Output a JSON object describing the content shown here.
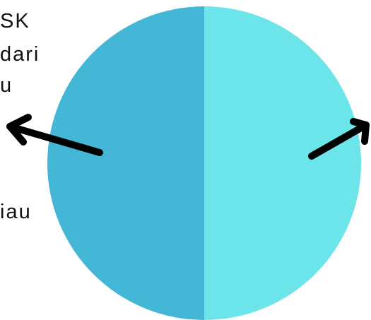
{
  "chart_data": {
    "type": "pie",
    "categories": [
      "",
      ""
    ],
    "values": [
      50,
      50
    ],
    "colors": [
      "#43B7D5",
      "#6BE5E9"
    ],
    "start": "top",
    "direction": "counter-clockwise",
    "title": "",
    "annotations": {
      "left_text_fragments": [
        "SK",
        "dari",
        "u",
        "iau"
      ],
      "arrows": [
        "left",
        "right"
      ],
      "arrow_color": "#000000"
    }
  }
}
